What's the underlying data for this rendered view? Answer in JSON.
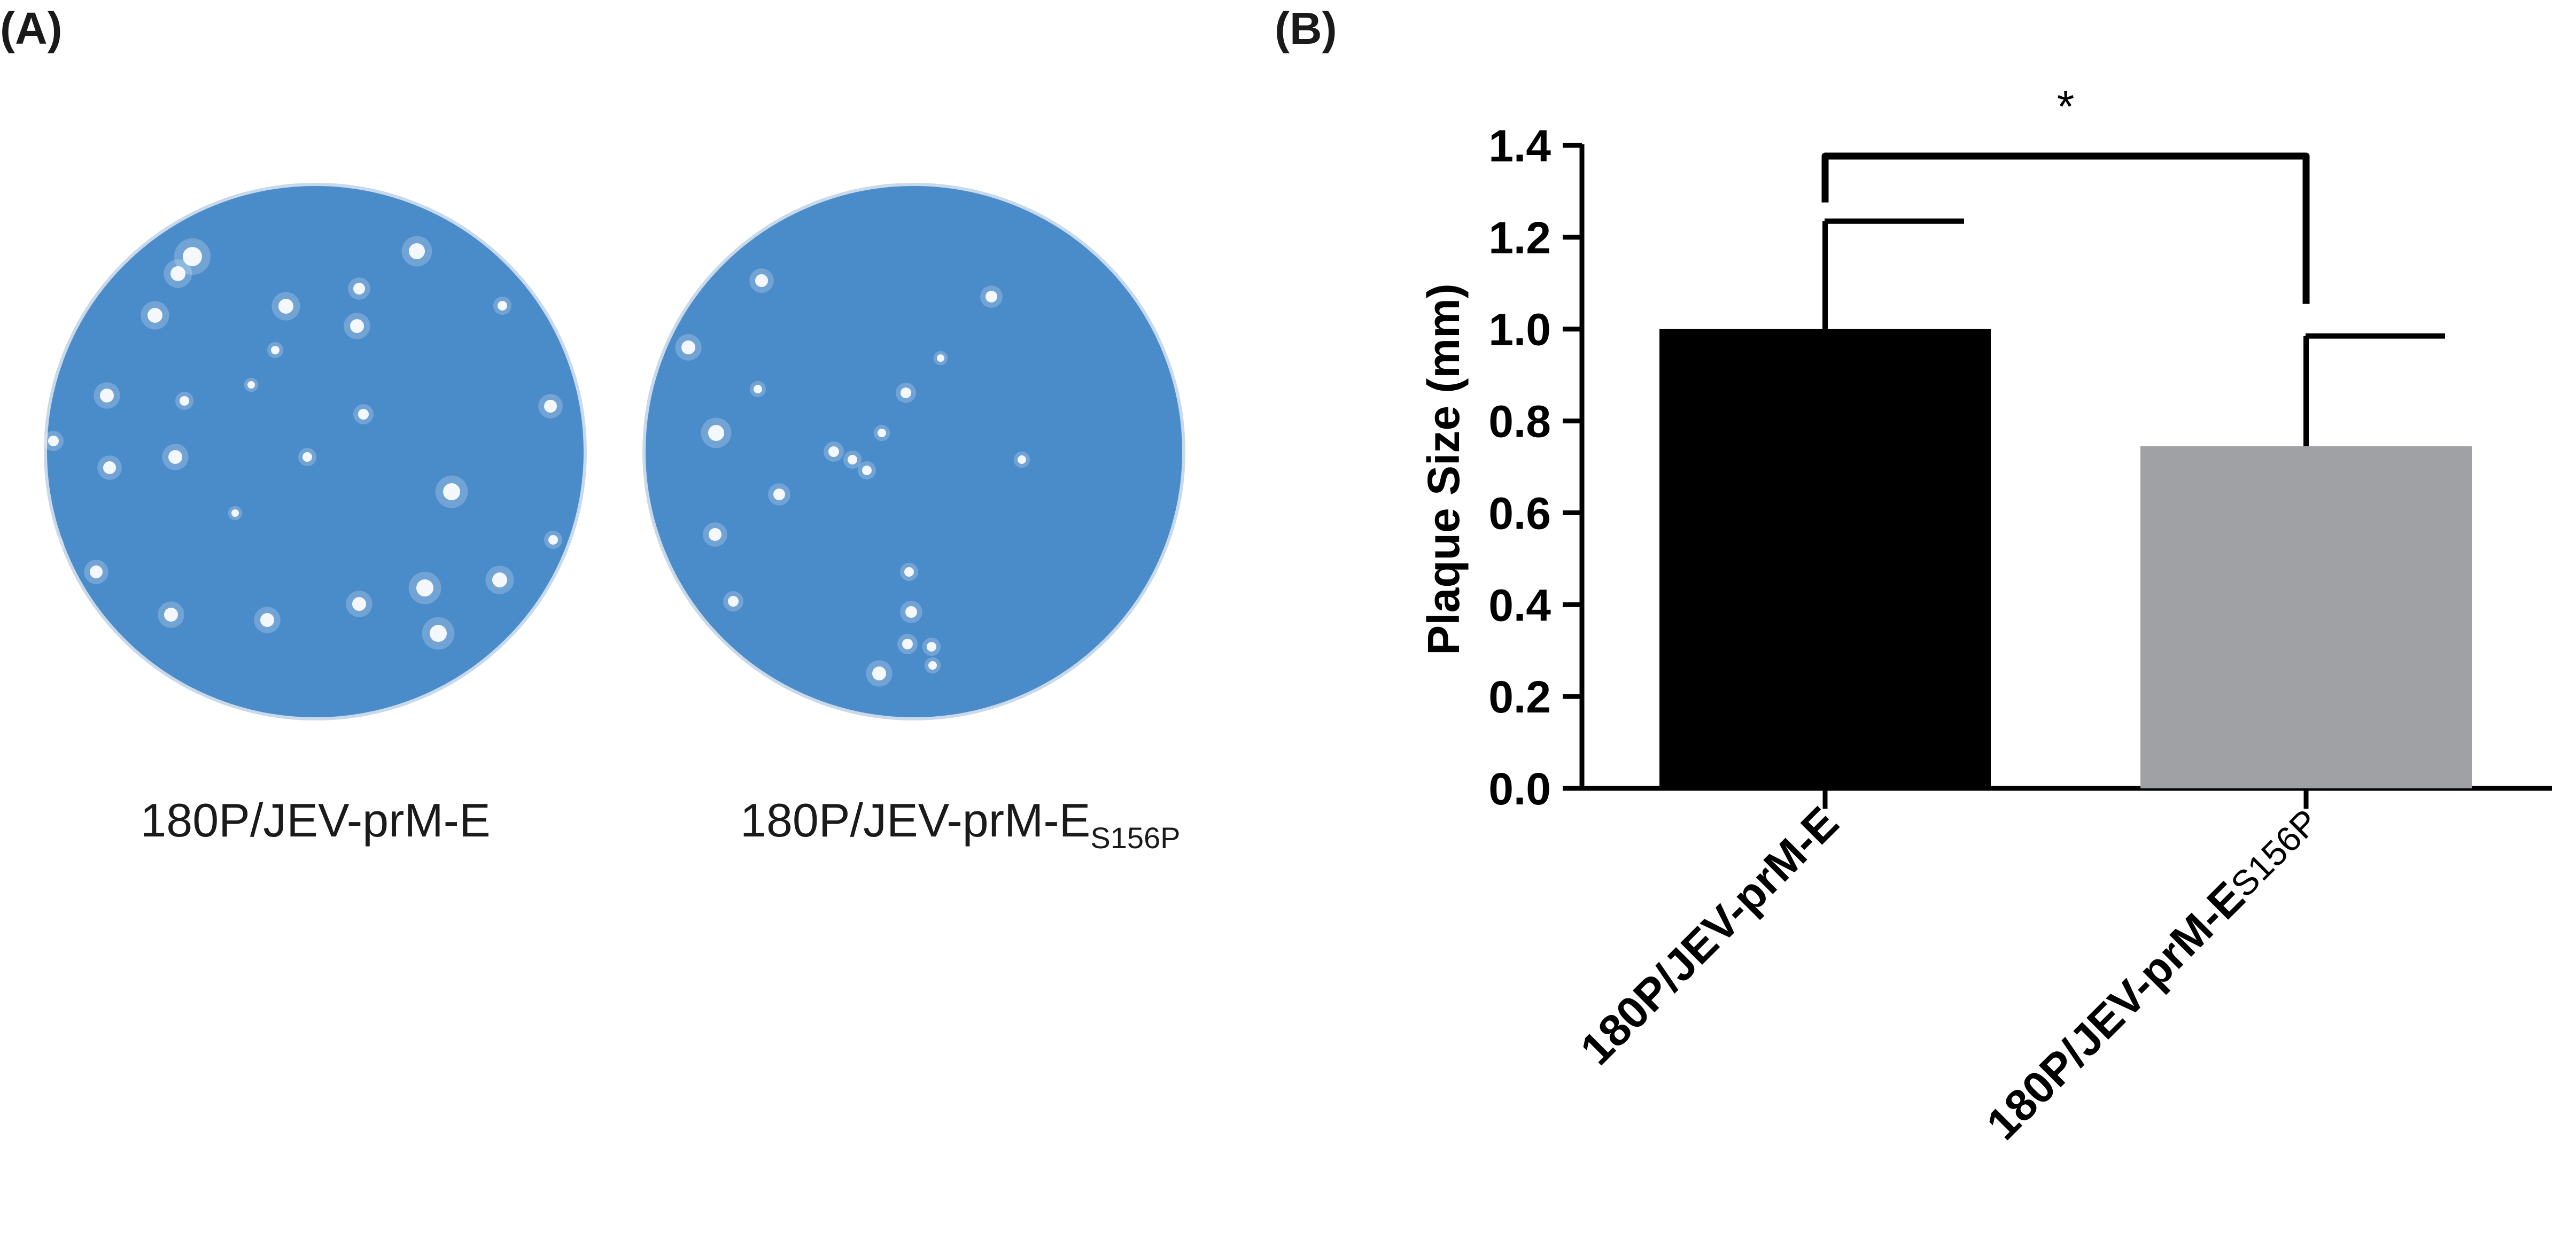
{
  "panel_a": {
    "label": "(A)",
    "plates": [
      {
        "caption_main": "180P/JEV-prM-E",
        "caption_sub": ""
      },
      {
        "caption_main": "180P/JEV-prM-E",
        "caption_sub": "S156P"
      }
    ],
    "colors": {
      "plate": "#4a8bca",
      "plate_edge": "#3f7dbd",
      "plaque": "#ffffff"
    }
  },
  "panel_b": {
    "label": "(B)"
  },
  "chart_data": {
    "type": "bar",
    "ylabel": "Plaque Size (mm)",
    "xlabel": "",
    "ylim": [
      0,
      1.4
    ],
    "yticks": [
      "0.0",
      "0.2",
      "0.4",
      "0.6",
      "0.8",
      "1.0",
      "1.2",
      "1.4"
    ],
    "categories": [
      {
        "main": "180P/JEV-prM-E",
        "sub": ""
      },
      {
        "main": "180P/JEV-prM-E",
        "sub": "S156P"
      }
    ],
    "values": [
      1.0,
      0.745
    ],
    "error_upper": [
      1.235,
      0.985
    ],
    "bar_colors": [
      "#000000",
      "#a0a1a4"
    ],
    "significance": {
      "label": "*",
      "between": [
        0,
        1
      ]
    },
    "grid": false,
    "legend": "none"
  }
}
